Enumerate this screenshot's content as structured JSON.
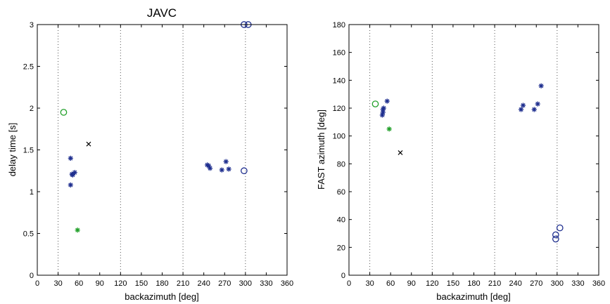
{
  "colors": {
    "blue": "#1f2f8f",
    "green": "#22a02a",
    "black": "#000000"
  },
  "chart_data": [
    {
      "type": "scatter",
      "title": "JAVC",
      "xlabel": "backazimuth [deg]",
      "ylabel": "delay time [s]",
      "xlim": [
        0,
        360
      ],
      "ylim": [
        0,
        3
      ],
      "xticks": [
        0,
        30,
        60,
        90,
        120,
        150,
        180,
        210,
        240,
        270,
        300,
        330,
        360
      ],
      "yticks": [
        0,
        0.5,
        1,
        1.5,
        2,
        2.5,
        3
      ],
      "ytick_labels": [
        "0",
        "0.5",
        "1",
        "1.5",
        "2",
        "2.5",
        "3"
      ],
      "vlines": [
        30,
        120,
        210,
        300
      ],
      "series": [
        {
          "marker": "star",
          "color": "blue",
          "points": [
            [
              48,
              1.4
            ],
            [
              48,
              1.08
            ],
            [
              50,
              1.21
            ],
            [
              51,
              1.2
            ],
            [
              54,
              1.23
            ],
            [
              245,
              1.32
            ],
            [
              247,
              1.31
            ],
            [
              249,
              1.28
            ],
            [
              266,
              1.26
            ],
            [
              272,
              1.36
            ],
            [
              276,
              1.27
            ]
          ]
        },
        {
          "marker": "star",
          "color": "green",
          "points": [
            [
              58,
              0.54
            ]
          ]
        },
        {
          "marker": "circle",
          "color": "green",
          "points": [
            [
              38,
              1.95
            ]
          ]
        },
        {
          "marker": "x",
          "color": "black",
          "points": [
            [
              74,
              1.57
            ]
          ]
        },
        {
          "marker": "circle",
          "color": "blue",
          "points": [
            [
              298,
              1.25
            ],
            [
              298,
              3.0
            ],
            [
              304,
              3.0
            ]
          ]
        }
      ]
    },
    {
      "type": "scatter",
      "title": "",
      "xlabel": "backazimuth [deg]",
      "ylabel": "FAST azimuth [deg]",
      "xlim": [
        0,
        360
      ],
      "ylim": [
        0,
        180
      ],
      "xticks": [
        0,
        30,
        60,
        90,
        120,
        150,
        180,
        210,
        240,
        270,
        300,
        330,
        360
      ],
      "yticks": [
        0,
        20,
        40,
        60,
        80,
        100,
        120,
        140,
        160,
        180
      ],
      "ytick_labels": [
        "0",
        "20",
        "40",
        "60",
        "80",
        "100",
        "120",
        "140",
        "160",
        "180"
      ],
      "vlines": [
        30,
        120,
        210,
        300
      ],
      "series": [
        {
          "marker": "star",
          "color": "blue",
          "points": [
            [
              48,
              115
            ],
            [
              49,
              117
            ],
            [
              49,
              119
            ],
            [
              50,
              120
            ],
            [
              55,
              125
            ],
            [
              248,
              119
            ],
            [
              251,
              122
            ],
            [
              267,
              119
            ],
            [
              272,
              123
            ],
            [
              277,
              136
            ]
          ]
        },
        {
          "marker": "star",
          "color": "green",
          "points": [
            [
              58,
              105
            ]
          ]
        },
        {
          "marker": "circle",
          "color": "green",
          "points": [
            [
              38,
              123
            ]
          ]
        },
        {
          "marker": "x",
          "color": "black",
          "points": [
            [
              74,
              88
            ]
          ]
        },
        {
          "marker": "circle",
          "color": "blue",
          "points": [
            [
              298,
              26
            ],
            [
              298,
              29
            ],
            [
              304,
              34
            ]
          ]
        }
      ]
    }
  ]
}
